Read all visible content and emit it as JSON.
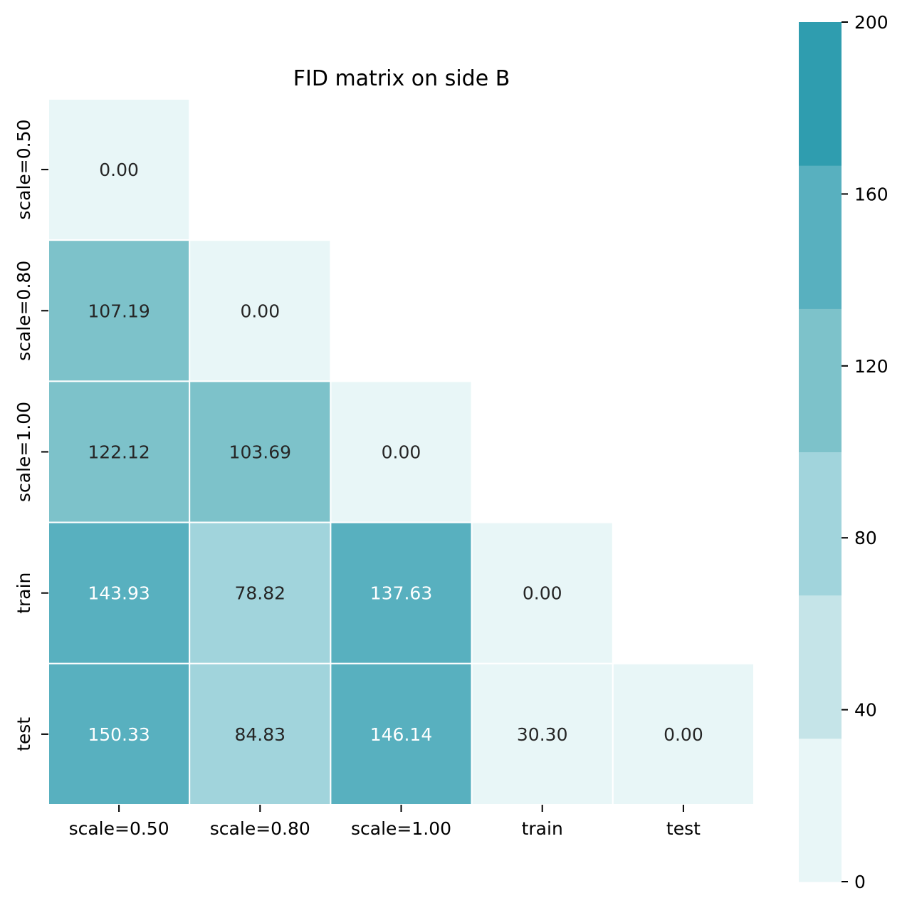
{
  "chart_data": {
    "type": "heatmap",
    "title": "FID matrix on side B",
    "xlabel": "",
    "ylabel": "",
    "labels": [
      "scale=0.50",
      "scale=0.80",
      "scale=1.00",
      "train",
      "test"
    ],
    "mask": "upper-triangle",
    "matrix": [
      [
        0.0,
        null,
        null,
        null,
        null
      ],
      [
        107.19,
        0.0,
        null,
        null,
        null
      ],
      [
        122.12,
        103.69,
        0.0,
        null,
        null
      ],
      [
        143.93,
        78.82,
        137.63,
        0.0,
        null
      ],
      [
        150.33,
        84.83,
        146.14,
        30.3,
        0.0
      ]
    ],
    "cell_text": [
      [
        "0.00",
        "",
        "",
        "",
        ""
      ],
      [
        "107.19",
        "0.00",
        "",
        "",
        ""
      ],
      [
        "122.12",
        "103.69",
        "0.00",
        "",
        ""
      ],
      [
        "143.93",
        "78.82",
        "137.63",
        "0.00",
        ""
      ],
      [
        "150.33",
        "84.83",
        "146.14",
        "30.30",
        "0.00"
      ]
    ],
    "colorbar": {
      "range": [
        0,
        200
      ],
      "ticks": [
        0,
        40,
        80,
        120,
        160,
        200
      ],
      "tick_labels": [
        "0",
        "40",
        "80",
        "120",
        "160",
        "200"
      ],
      "bins": [
        {
          "from": 0,
          "to": 33.33,
          "color": "#e8f6f7"
        },
        {
          "from": 33.33,
          "to": 66.67,
          "color": "#c5e4e8"
        },
        {
          "from": 66.67,
          "to": 100,
          "color": "#a1d4dc"
        },
        {
          "from": 100,
          "to": 133.33,
          "color": "#7dc2ca"
        },
        {
          "from": 133.33,
          "to": 166.67,
          "color": "#58b0bf"
        },
        {
          "from": 166.67,
          "to": 200,
          "color": "#2f9daf"
        }
      ]
    },
    "text_colors": {
      "dark": "#262626",
      "light": "#ffffff"
    },
    "grid": false
  }
}
